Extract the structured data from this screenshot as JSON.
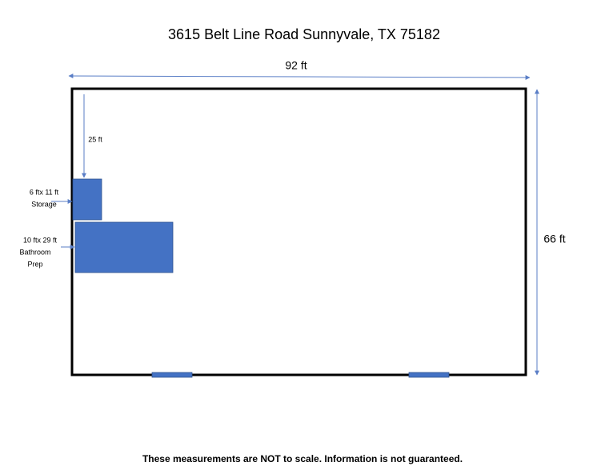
{
  "title": "3615 Belt Line Road Sunnyvale, TX 75182",
  "dimensions": {
    "width": "92 ft",
    "depth": "66 ft",
    "offset": "25 ft"
  },
  "rooms": [
    {
      "size": "6 ftx 11 ft",
      "lines": [
        "Storage"
      ]
    },
    {
      "size": "10 ftx 29 ft",
      "lines": [
        "Bathroom",
        "Prep"
      ]
    }
  ],
  "footer": "These measurements are NOT to scale. Information is not guaranteed."
}
